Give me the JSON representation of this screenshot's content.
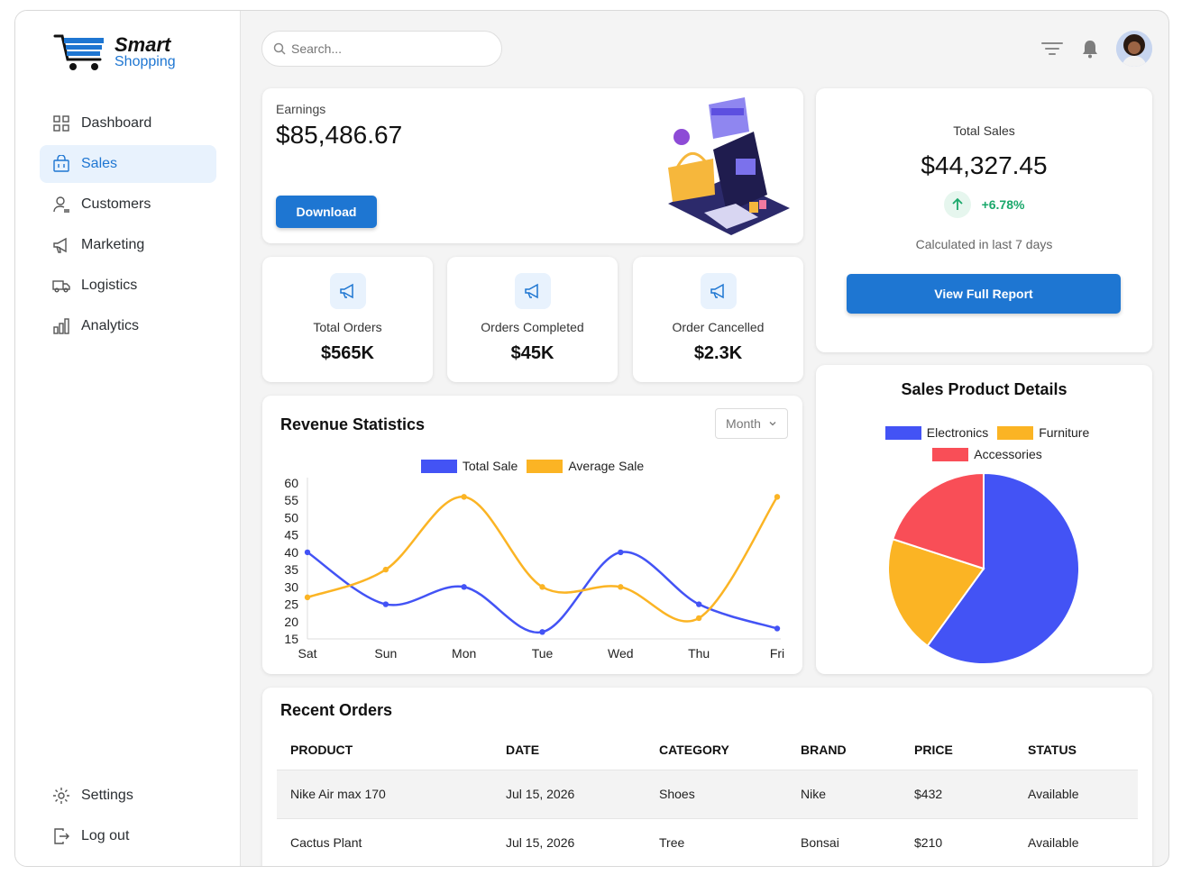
{
  "brand": {
    "name_line1": "Smart",
    "name_line2": "Shopping"
  },
  "sidebar": {
    "items": [
      {
        "label": "Dashboard",
        "icon": "grid-icon",
        "active": false
      },
      {
        "label": "Sales",
        "icon": "shop-bag-icon",
        "active": true
      },
      {
        "label": "Customers",
        "icon": "user-icon",
        "active": false
      },
      {
        "label": "Marketing",
        "icon": "megaphone-icon",
        "active": false
      },
      {
        "label": "Logistics",
        "icon": "truck-icon",
        "active": false
      },
      {
        "label": "Analytics",
        "icon": "bar-chart-icon",
        "active": false
      }
    ],
    "bottom": [
      {
        "label": "Settings",
        "icon": "gear-icon"
      },
      {
        "label": "Log out",
        "icon": "logout-icon"
      }
    ]
  },
  "header": {
    "search_placeholder": "Search..."
  },
  "earnings": {
    "label": "Earnings",
    "value": "$85,486.67",
    "button": "Download"
  },
  "total_sales": {
    "label": "Total Sales",
    "value": "$44,327.45",
    "change": "+6.78%",
    "note": "Calculated in last 7 days",
    "button": "View Full Report"
  },
  "stats": [
    {
      "label": "Total Orders",
      "value": "$565K"
    },
    {
      "label": "Orders Completed",
      "value": "$45K"
    },
    {
      "label": "Order Cancelled",
      "value": "$2.3K"
    }
  ],
  "revenue": {
    "title": "Revenue Statistics",
    "period": "Month"
  },
  "colors": {
    "primary": "#1e76d2",
    "total_sale": "#4353f5",
    "average_sale": "#fbb424",
    "accessories": "#f94e57",
    "positive": "#1aa86b"
  },
  "chart_data": [
    {
      "type": "line",
      "x": [
        "Sat",
        "Sun",
        "Mon",
        "Tue",
        "Wed",
        "Thu",
        "Fri"
      ],
      "series": [
        {
          "name": "Total Sale",
          "values": [
            40,
            25,
            30,
            17,
            40,
            25,
            18
          ]
        },
        {
          "name": "Average Sale",
          "values": [
            27,
            35,
            56,
            30,
            30,
            21,
            56
          ]
        }
      ],
      "yticks": [
        60,
        55,
        50,
        45,
        40,
        35,
        30,
        25,
        20,
        15
      ],
      "ylim": [
        15,
        60
      ],
      "legend": "top"
    },
    {
      "type": "pie",
      "title": "Sales Product Details",
      "categories": [
        "Electronics",
        "Furniture",
        "Accessories"
      ],
      "values": [
        60,
        20,
        20
      ],
      "legend": "top"
    }
  ],
  "recent_orders": {
    "title": "Recent Orders",
    "columns": [
      "PRODUCT",
      "DATE",
      "CATEGORY",
      "BRAND",
      "PRICE",
      "STATUS"
    ],
    "rows": [
      [
        "Nike Air max 170",
        "Jul 15, 2026",
        "Shoes",
        "Nike",
        "$432",
        "Available"
      ],
      [
        "Cactus Plant",
        "Jul 15, 2026",
        "Tree",
        "Bonsai",
        "$210",
        "Available"
      ]
    ]
  }
}
